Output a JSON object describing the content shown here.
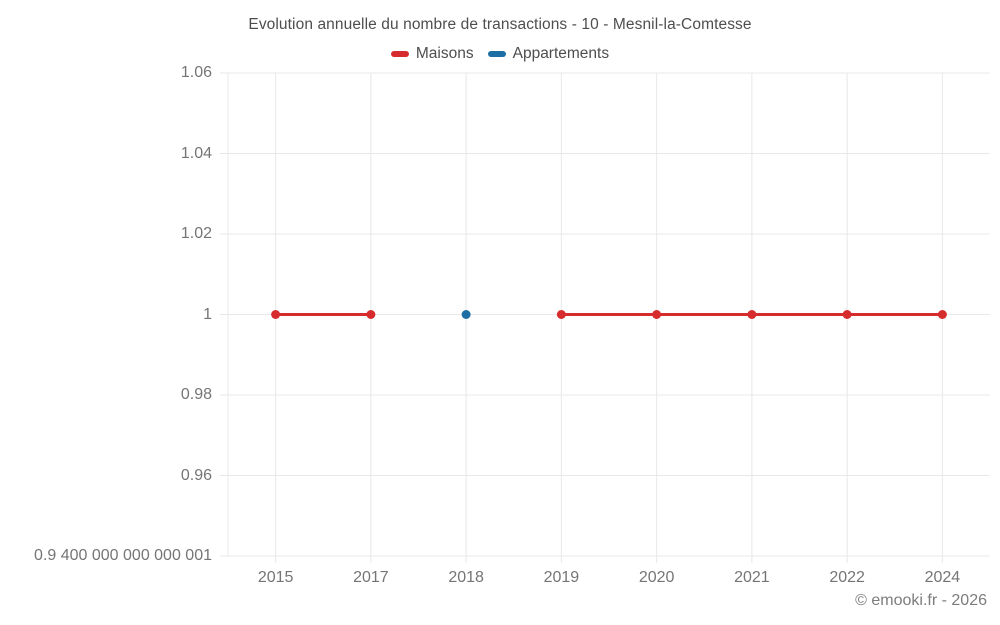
{
  "footer": {
    "copyright": "© emooki.fr - 2026"
  },
  "chart_data": {
    "type": "line",
    "title": "Evolution annuelle du nombre de transactions - 10 - Mesnil-la-Comtesse",
    "categories": [
      "2015",
      "2017",
      "2018",
      "2019",
      "2020",
      "2021",
      "2022",
      "2024"
    ],
    "series": [
      {
        "name": "Maisons",
        "color": "#d62c2e",
        "values": [
          1,
          1,
          null,
          1,
          1,
          1,
          1,
          1
        ]
      },
      {
        "name": "Appartements",
        "color": "#1c6ea4",
        "values": [
          null,
          null,
          1,
          null,
          null,
          null,
          null,
          null
        ]
      }
    ],
    "xlabel": "",
    "ylabel": "",
    "ylim": [
      0.94,
      1.06
    ],
    "yticks": [
      {
        "value": 1.06,
        "label": "1.06"
      },
      {
        "value": 1.04,
        "label": "1.04"
      },
      {
        "value": 1.02,
        "label": "1.02"
      },
      {
        "value": 1.0,
        "label": "1"
      },
      {
        "value": 0.98,
        "label": "0.98"
      },
      {
        "value": 0.96,
        "label": "0.96"
      },
      {
        "value": 0.94,
        "label": "0.9 400 000 000 000 001"
      }
    ],
    "grid": true,
    "grid_color": "#e8e8e8",
    "legend_position": "top",
    "point_radius": 4.5,
    "line_width": 3
  }
}
